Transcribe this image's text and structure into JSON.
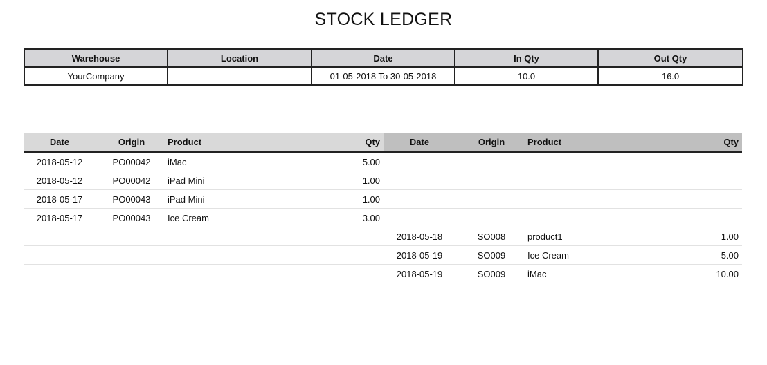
{
  "report": {
    "title": "STOCK LEDGER"
  },
  "summary": {
    "headers": {
      "warehouse": "Warehouse",
      "location": "Location",
      "date": "Date",
      "in_qty": "In Qty",
      "out_qty": "Out Qty"
    },
    "values": {
      "warehouse": "YourCompany",
      "location": "",
      "date": "01-05-2018 To 30-05-2018",
      "in_qty": "10.0",
      "out_qty": "16.0"
    }
  },
  "ledger": {
    "in_headers": {
      "date": "Date",
      "origin": "Origin",
      "product": "Product",
      "qty": "Qty"
    },
    "out_headers": {
      "date": "Date",
      "origin": "Origin",
      "product": "Product",
      "qty": "Qty"
    },
    "rows": [
      {
        "in_date": "2018-05-12",
        "in_origin": "PO00042",
        "in_product": "iMac",
        "in_qty": "5.00",
        "out_date": "",
        "out_origin": "",
        "out_product": "",
        "out_qty": ""
      },
      {
        "in_date": "2018-05-12",
        "in_origin": "PO00042",
        "in_product": "iPad Mini",
        "in_qty": "1.00",
        "out_date": "",
        "out_origin": "",
        "out_product": "",
        "out_qty": ""
      },
      {
        "in_date": "2018-05-17",
        "in_origin": "PO00043",
        "in_product": "iPad Mini",
        "in_qty": "1.00",
        "out_date": "",
        "out_origin": "",
        "out_product": "",
        "out_qty": ""
      },
      {
        "in_date": "2018-05-17",
        "in_origin": "PO00043",
        "in_product": "Ice Cream",
        "in_qty": "3.00",
        "out_date": "",
        "out_origin": "",
        "out_product": "",
        "out_qty": ""
      },
      {
        "in_date": "",
        "in_origin": "",
        "in_product": "",
        "in_qty": "",
        "out_date": "2018-05-18",
        "out_origin": "SO008",
        "out_product": "product1",
        "out_qty": "1.00"
      },
      {
        "in_date": "",
        "in_origin": "",
        "in_product": "",
        "in_qty": "",
        "out_date": "2018-05-19",
        "out_origin": "SO009",
        "out_product": "Ice Cream",
        "out_qty": "5.00"
      },
      {
        "in_date": "",
        "in_origin": "",
        "in_product": "",
        "in_qty": "",
        "out_date": "2018-05-19",
        "out_origin": "SO009",
        "out_product": "iMac",
        "out_qty": "10.00"
      }
    ]
  }
}
